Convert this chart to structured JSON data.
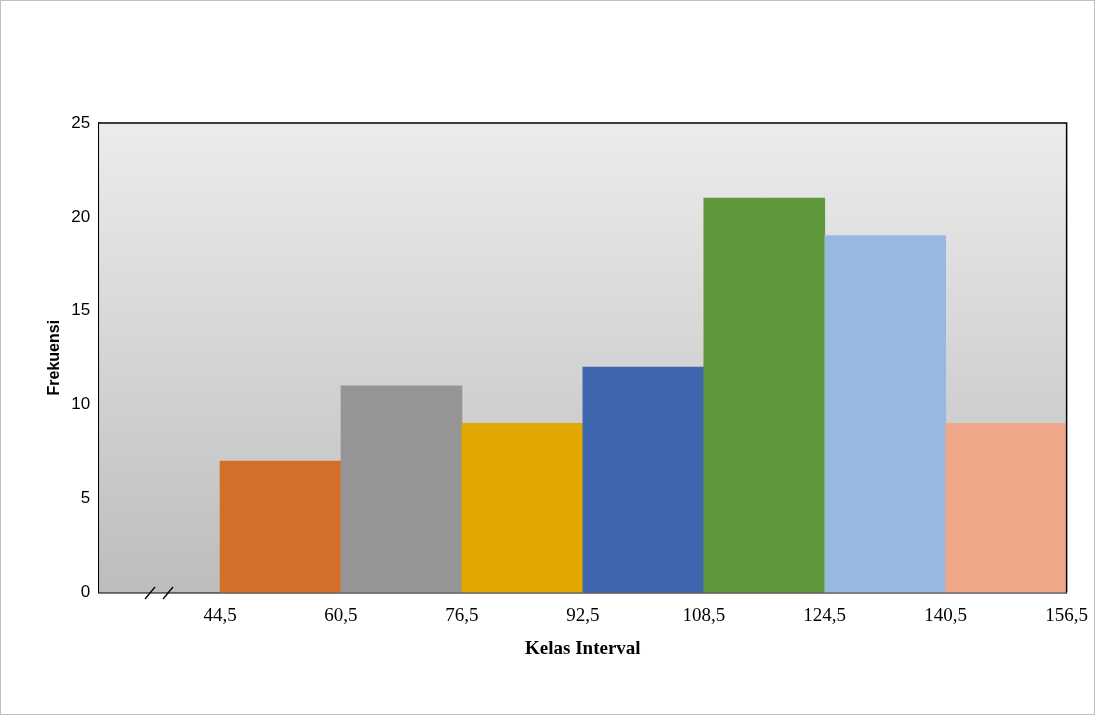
{
  "chart_data": {
    "type": "histogram",
    "xlabel": "Kelas Interval",
    "ylabel": "Frekuensi",
    "bins": [
      44.5,
      60.5,
      76.5,
      92.5,
      108.5,
      124.5,
      140.5,
      156.5
    ],
    "values": [
      7,
      11,
      9,
      12,
      21,
      19,
      9
    ],
    "colors": [
      "#d46f2a",
      "#959595",
      "#e2a800",
      "#3d66ad",
      "#5f993c",
      "#97b8df",
      "#f1a78a"
    ],
    "xlim": [
      28.5,
      156.5
    ],
    "xticks": [
      {
        "value": 44.5,
        "label": "44,5"
      },
      {
        "value": 60.5,
        "label": "60,5"
      },
      {
        "value": 76.5,
        "label": "76,5"
      },
      {
        "value": 92.5,
        "label": "92,5"
      },
      {
        "value": 108.5,
        "label": "108,5"
      },
      {
        "value": 124.5,
        "label": "124,5"
      },
      {
        "value": 140.5,
        "label": "140,5"
      },
      {
        "value": 156.5,
        "label": "156,5"
      }
    ],
    "ylim": [
      0,
      25
    ],
    "yticks": [
      0,
      5,
      10,
      15,
      20,
      25
    ],
    "grid": false
  }
}
